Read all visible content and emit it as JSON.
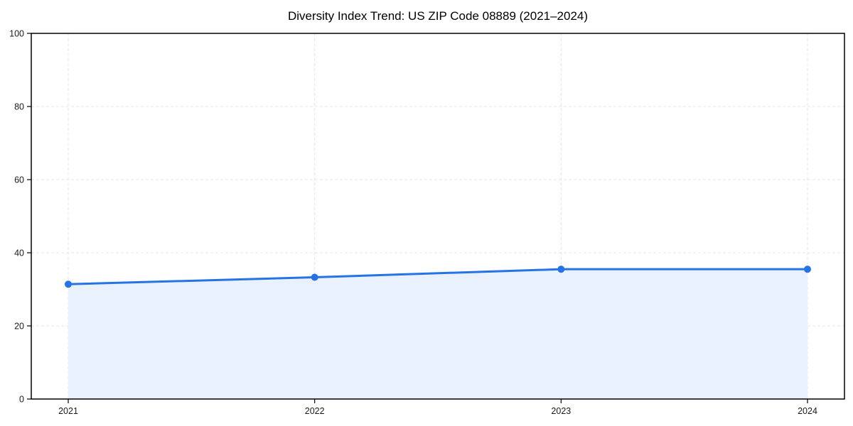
{
  "chart_data": {
    "type": "area",
    "title": "Diversity Index Trend: US ZIP Code 08889 (2021–2024)",
    "x": [
      2021,
      2022,
      2023,
      2024
    ],
    "xtick_labels": [
      "2021",
      "2022",
      "2023",
      "2024"
    ],
    "series": [
      {
        "name": "Diversity Index",
        "values": [
          31.4,
          33.3,
          35.5,
          35.5
        ]
      }
    ],
    "xlabel": "",
    "ylabel": "",
    "ylim": [
      0,
      100
    ],
    "yticks": [
      0,
      20,
      40,
      60,
      80,
      100
    ],
    "grid": true,
    "grid_style": "dashed",
    "legend_position": "none",
    "marker": "circle",
    "colors": {
      "line": "#2573e5",
      "marker": "#2573e5",
      "fill": "#e9f1fc",
      "grid": "#e4e4e4",
      "spine": "#000000",
      "tick_text": "#1a1a1a",
      "background": "#ffffff"
    }
  }
}
